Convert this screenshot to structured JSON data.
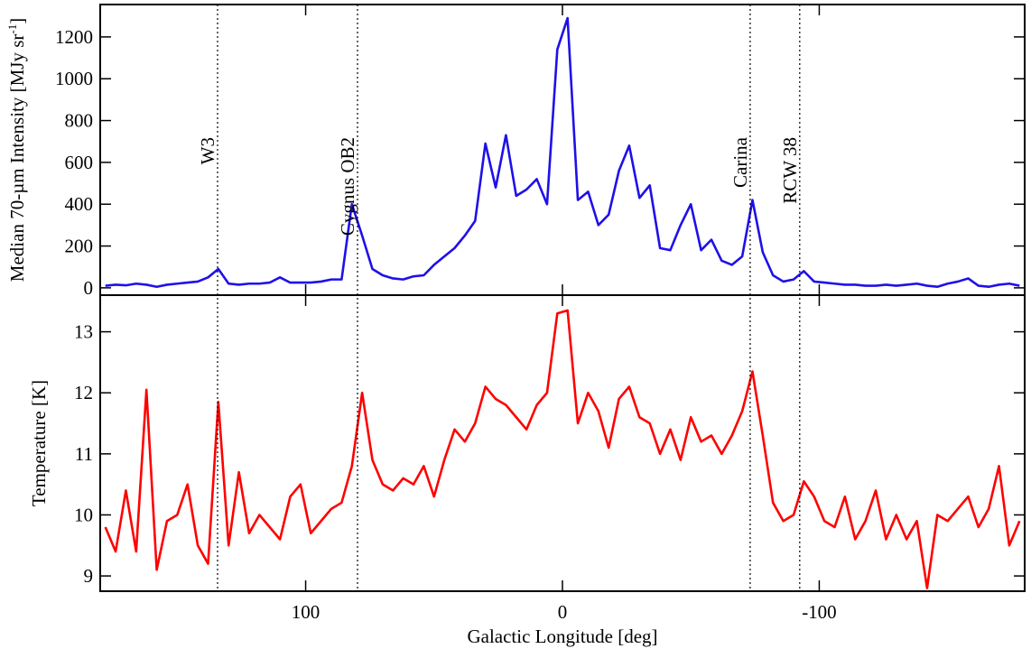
{
  "chart_data": [
    {
      "type": "line",
      "ylabel": "Median 70-µm Intensity [MJy sr",
      "ylabel_sup": "-1",
      "ylabel_end": "]",
      "xlim": [
        180,
        -180
      ],
      "ylim": [
        -35,
        1355
      ],
      "yticks": [
        0,
        200,
        400,
        600,
        800,
        1000,
        1200
      ],
      "annotations": [
        {
          "x": 134.3,
          "label": "W3"
        },
        {
          "x": 79.8,
          "label": "Cygnus OB2"
        },
        {
          "x": -73.1,
          "label": "Carina"
        },
        {
          "x": -92.4,
          "label": "RCW 38"
        }
      ],
      "x": [
        178,
        174,
        170,
        166,
        162,
        158,
        154,
        150,
        146,
        142,
        138,
        134,
        130,
        126,
        122,
        118,
        114,
        110,
        106,
        102,
        98,
        94,
        90,
        86,
        82,
        78,
        74,
        70,
        66,
        62,
        58,
        54,
        50,
        46,
        42,
        38,
        34,
        30,
        26,
        22,
        18,
        14,
        10,
        6,
        2,
        -2,
        -6,
        -10,
        -14,
        -18,
        -22,
        -26,
        -30,
        -34,
        -38,
        -42,
        -46,
        -50,
        -54,
        -58,
        -62,
        -66,
        -70,
        -74,
        -78,
        -82,
        -86,
        -90,
        -94,
        -98,
        -102,
        -106,
        -110,
        -114,
        -118,
        -122,
        -126,
        -130,
        -134,
        -138,
        -142,
        -146,
        -150,
        -154,
        -158,
        -162,
        -166,
        -170,
        -174,
        -178
      ],
      "series": [
        {
          "color": "#1f10e8",
          "values": [
            10,
            15,
            12,
            20,
            15,
            5,
            15,
            20,
            25,
            30,
            50,
            90,
            20,
            15,
            20,
            20,
            25,
            50,
            25,
            25,
            25,
            30,
            40,
            40,
            400,
            250,
            90,
            60,
            45,
            40,
            55,
            60,
            110,
            150,
            190,
            250,
            320,
            690,
            480,
            730,
            440,
            470,
            520,
            400,
            1140,
            1290,
            420,
            460,
            300,
            350,
            560,
            680,
            430,
            490,
            190,
            180,
            300,
            400,
            180,
            230,
            130,
            110,
            150,
            420,
            170,
            60,
            30,
            40,
            80,
            30,
            25,
            20,
            15,
            15,
            10,
            10,
            15,
            10,
            15,
            20,
            10,
            5,
            20,
            30,
            45,
            10,
            5,
            15,
            20,
            10
          ]
        }
      ]
    },
    {
      "type": "line",
      "ylabel": "Temperature [K]",
      "xlabel": "Galactic Longitude [deg]",
      "xlim": [
        180,
        -180
      ],
      "ylim": [
        8.75,
        13.6
      ],
      "yticks": [
        9,
        10,
        11,
        12,
        13
      ],
      "xticks": [
        100,
        0,
        -100
      ],
      "x": [
        178,
        174,
        170,
        166,
        162,
        158,
        154,
        150,
        146,
        142,
        138,
        134,
        130,
        126,
        122,
        118,
        114,
        110,
        106,
        102,
        98,
        94,
        90,
        86,
        82,
        78,
        74,
        70,
        66,
        62,
        58,
        54,
        50,
        46,
        42,
        38,
        34,
        30,
        26,
        22,
        18,
        14,
        10,
        6,
        2,
        -2,
        -6,
        -10,
        -14,
        -18,
        -22,
        -26,
        -30,
        -34,
        -38,
        -42,
        -46,
        -50,
        -54,
        -58,
        -62,
        -66,
        -70,
        -74,
        -78,
        -82,
        -86,
        -90,
        -94,
        -98,
        -102,
        -106,
        -110,
        -114,
        -118,
        -122,
        -126,
        -130,
        -134,
        -138,
        -142,
        -146,
        -150,
        -154,
        -158,
        -162,
        -166,
        -170,
        -174,
        -178
      ],
      "series": [
        {
          "color": "#ff0000",
          "values": [
            9.8,
            9.4,
            10.4,
            9.4,
            12.05,
            9.1,
            9.9,
            10.0,
            10.5,
            9.5,
            9.2,
            11.85,
            9.5,
            10.7,
            9.7,
            10.0,
            9.8,
            9.6,
            10.3,
            10.5,
            9.7,
            9.9,
            10.1,
            10.2,
            10.8,
            12.0,
            10.9,
            10.5,
            10.4,
            10.6,
            10.5,
            10.8,
            10.3,
            10.9,
            11.4,
            11.2,
            11.5,
            12.1,
            11.9,
            11.8,
            11.6,
            11.4,
            11.8,
            12.0,
            13.3,
            13.35,
            11.5,
            12.0,
            11.7,
            11.1,
            11.9,
            12.1,
            11.6,
            11.5,
            11.0,
            11.4,
            10.9,
            11.6,
            11.2,
            11.3,
            11.0,
            11.3,
            11.7,
            12.35,
            11.3,
            10.2,
            9.9,
            10.0,
            10.55,
            10.3,
            9.9,
            9.8,
            10.3,
            9.6,
            9.9,
            10.4,
            9.6,
            10.0,
            9.6,
            9.9,
            8.8,
            10.0,
            9.9,
            10.1,
            10.3,
            9.8,
            10.1,
            10.8,
            9.5,
            9.9
          ]
        }
      ]
    }
  ]
}
